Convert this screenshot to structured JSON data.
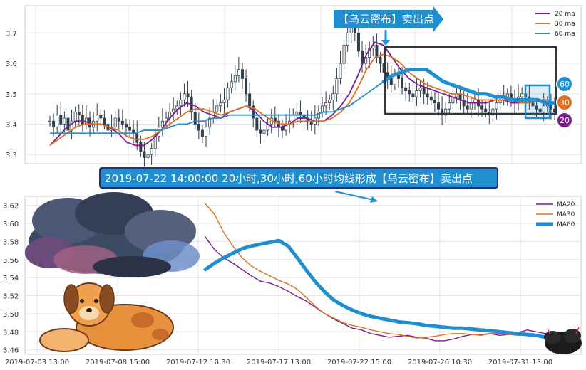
{
  "banner": {
    "top_label": "【乌云密布】卖出点",
    "main_label": "2019-07-22 14:00:00 20小时,30小时,60小时均线形成【乌云密布】卖出点"
  },
  "badges": [
    "60",
    "30",
    "20"
  ],
  "colors": {
    "ma20": "#7b1f8c",
    "ma30": "#e0701f",
    "ma60": "#1f8fd0",
    "banner_bg": "#1f8fd0",
    "banner_border": "#2b2b7a",
    "box_dark": "#2f3640",
    "candle": "#2f3e4c"
  },
  "chart_data": [
    {
      "type": "candlestick",
      "title": "",
      "xlabel": "",
      "ylabel": "",
      "ylim": [
        3.27,
        3.79
      ],
      "y_ticks": [
        3.3,
        3.4,
        3.5,
        3.6,
        3.7
      ],
      "grid": true,
      "legend_position": "top-right",
      "candles_note": "hourly candles 2019-07-03 to 2019-08-02, closes approx",
      "closes": [
        3.41,
        3.39,
        3.43,
        3.4,
        3.42,
        3.38,
        3.41,
        3.44,
        3.43,
        3.4,
        3.42,
        3.39,
        3.41,
        3.43,
        3.42,
        3.4,
        3.38,
        3.39,
        3.42,
        3.41,
        3.4,
        3.39,
        3.38,
        3.37,
        3.34,
        3.31,
        3.29,
        3.3,
        3.32,
        3.36,
        3.39,
        3.41,
        3.42,
        3.44,
        3.45,
        3.46,
        3.48,
        3.5,
        3.49,
        3.44,
        3.4,
        3.38,
        3.36,
        3.39,
        3.42,
        3.44,
        3.46,
        3.47,
        3.48,
        3.52,
        3.54,
        3.56,
        3.58,
        3.55,
        3.5,
        3.46,
        3.42,
        3.38,
        3.37,
        3.38,
        3.4,
        3.42,
        3.41,
        3.39,
        3.38,
        3.4,
        3.41,
        3.43,
        3.44,
        3.43,
        3.42,
        3.41,
        3.4,
        3.42,
        3.44,
        3.46,
        3.47,
        3.48,
        3.5,
        3.55,
        3.6,
        3.66,
        3.7,
        3.72,
        3.7,
        3.64,
        3.6,
        3.62,
        3.65,
        3.66,
        3.62,
        3.6,
        3.57,
        3.55,
        3.53,
        3.56,
        3.55,
        3.52,
        3.51,
        3.5,
        3.49,
        3.51,
        3.52,
        3.5,
        3.49,
        3.48,
        3.47,
        3.45,
        3.43,
        3.45,
        3.47,
        3.49,
        3.5,
        3.48,
        3.46,
        3.45,
        3.47,
        3.48,
        3.46,
        3.45,
        3.44,
        3.43,
        3.45,
        3.47,
        3.48,
        3.49,
        3.5,
        3.48,
        3.47,
        3.49,
        3.5,
        3.49,
        3.47,
        3.46,
        3.45,
        3.44,
        3.46,
        3.47,
        3.45,
        3.44
      ],
      "series": [
        {
          "name": "20 ma",
          "values": [
            3.33,
            3.36,
            3.39,
            3.41,
            3.41,
            3.4,
            3.4,
            3.39,
            3.37,
            3.34,
            3.33,
            3.33,
            3.35,
            3.38,
            3.42,
            3.45,
            3.47,
            3.46,
            3.44,
            3.43,
            3.42,
            3.44,
            3.45,
            3.46,
            3.44,
            3.41,
            3.39,
            3.39,
            3.4,
            3.42,
            3.42,
            3.41,
            3.41,
            3.43,
            3.46,
            3.5,
            3.56,
            3.63,
            3.67,
            3.66,
            3.62,
            3.58,
            3.55,
            3.53,
            3.52,
            3.51,
            3.5,
            3.49,
            3.48,
            3.47,
            3.47,
            3.47,
            3.48,
            3.48,
            3.47,
            3.47,
            3.47,
            3.48,
            3.48,
            3.47
          ]
        },
        {
          "name": "30 ma",
          "values": [
            3.33,
            3.35,
            3.37,
            3.39,
            3.4,
            3.4,
            3.4,
            3.39,
            3.38,
            3.36,
            3.35,
            3.35,
            3.36,
            3.38,
            3.4,
            3.42,
            3.44,
            3.45,
            3.45,
            3.44,
            3.43,
            3.44,
            3.45,
            3.46,
            3.45,
            3.43,
            3.41,
            3.4,
            3.4,
            3.41,
            3.41,
            3.41,
            3.41,
            3.42,
            3.44,
            3.47,
            3.52,
            3.58,
            3.62,
            3.63,
            3.62,
            3.6,
            3.57,
            3.55,
            3.53,
            3.52,
            3.51,
            3.5,
            3.5,
            3.49,
            3.48,
            3.48,
            3.48,
            3.48,
            3.48,
            3.47,
            3.47,
            3.48,
            3.48,
            3.47
          ]
        },
        {
          "name": "60 ma",
          "values": [
            3.37,
            3.37,
            3.37,
            3.37,
            3.37,
            3.37,
            3.37,
            3.37,
            3.37,
            3.37,
            3.37,
            3.38,
            3.38,
            3.38,
            3.39,
            3.4,
            3.4,
            3.41,
            3.41,
            3.42,
            3.42,
            3.43,
            3.43,
            3.43,
            3.43,
            3.43,
            3.43,
            3.43,
            3.43,
            3.43,
            3.43,
            3.43,
            3.44,
            3.44,
            3.45,
            3.46,
            3.48,
            3.5,
            3.52,
            3.54,
            3.56,
            3.57,
            3.58,
            3.58,
            3.58,
            3.56,
            3.54,
            3.53,
            3.52,
            3.51,
            3.5,
            3.5,
            3.49,
            3.49,
            3.48,
            3.48,
            3.48,
            3.48,
            3.47,
            3.47
          ]
        }
      ]
    },
    {
      "type": "line",
      "title": "",
      "xlabel": "",
      "ylabel": "",
      "ylim": [
        3.455,
        3.63
      ],
      "y_ticks": [
        3.46,
        3.48,
        3.5,
        3.52,
        3.54,
        3.56,
        3.58,
        3.6,
        3.62
      ],
      "x_ticks": [
        "2019-07-03 13:00",
        "2019-07-08 15:00",
        "2019-07-12 10:30",
        "2019-07-17 13:00",
        "2019-07-22 15:00",
        "2019-07-26 10:30",
        "2019-07-31 13:00"
      ],
      "grid": true,
      "legend_position": "top-right",
      "series": [
        {
          "name": "MA20",
          "values": [
            3.585,
            3.571,
            3.562,
            3.556,
            3.549,
            3.542,
            3.536,
            3.534,
            3.53,
            3.525,
            3.519,
            3.514,
            3.507,
            3.5,
            3.494,
            3.489,
            3.484,
            3.482,
            3.478,
            3.476,
            3.474,
            3.475,
            3.476,
            3.474,
            3.473,
            3.47,
            3.47,
            3.472,
            3.475,
            3.477,
            3.477,
            3.478,
            3.476,
            3.477,
            3.479,
            3.482,
            3.48,
            3.478,
            3.476
          ]
        },
        {
          "name": "MA30",
          "values": [
            3.622,
            3.61,
            3.59,
            3.575,
            3.562,
            3.553,
            3.547,
            3.542,
            3.537,
            3.533,
            3.527,
            3.518,
            3.508,
            3.5,
            3.495,
            3.49,
            3.487,
            3.485,
            3.482,
            3.48,
            3.478,
            3.477,
            3.475,
            3.473,
            3.474,
            3.475,
            3.477,
            3.478,
            3.478,
            3.477,
            3.476,
            3.478,
            3.478,
            3.477,
            3.476,
            3.476,
            3.475,
            3.474,
            3.472
          ]
        },
        {
          "name": "MA60",
          "values": [
            3.549,
            3.556,
            3.562,
            3.567,
            3.572,
            3.575,
            3.577,
            3.579,
            3.581,
            3.575,
            3.562,
            3.548,
            3.535,
            3.524,
            3.515,
            3.509,
            3.504,
            3.5,
            3.497,
            3.495,
            3.493,
            3.491,
            3.49,
            3.489,
            3.487,
            3.486,
            3.485,
            3.484,
            3.484,
            3.483,
            3.482,
            3.481,
            3.48,
            3.479,
            3.478,
            3.477,
            3.476,
            3.474,
            3.472
          ]
        }
      ]
    }
  ]
}
